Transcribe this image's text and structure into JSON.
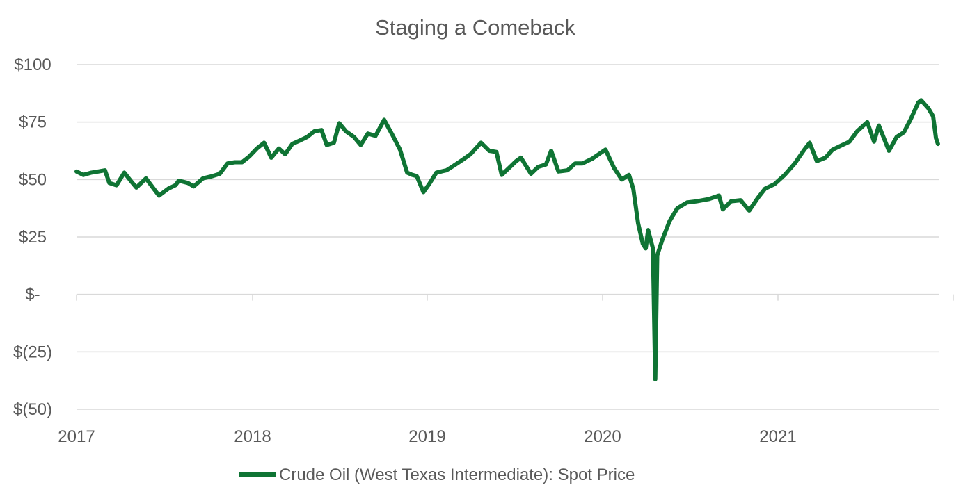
{
  "chart_data": {
    "type": "line",
    "title": "Staging a Comeback",
    "xlabel": "",
    "ylabel": "",
    "x_tick_labels": [
      "2017",
      "2018",
      "2019",
      "2020",
      "2021"
    ],
    "y_tick_labels": [
      "$100",
      "$75",
      "$50",
      "$25",
      "$-",
      "$(25)",
      "$(50)"
    ],
    "y_ticks": [
      100,
      75,
      50,
      25,
      0,
      -25,
      -50
    ],
    "ylim": [
      -50,
      100
    ],
    "xlim": [
      "2017-01-01",
      "2021-11-30"
    ],
    "grid": true,
    "legend_position": "bottom",
    "series": [
      {
        "name": "Crude Oil (West Texas Intermediate): Spot Price",
        "color": "#0f7434",
        "points": [
          [
            "2017-01-01",
            53.5
          ],
          [
            "2017-01-15",
            52.0
          ],
          [
            "2017-02-01",
            53.0
          ],
          [
            "2017-02-15",
            53.5
          ],
          [
            "2017-03-01",
            54.0
          ],
          [
            "2017-03-10",
            48.5
          ],
          [
            "2017-03-25",
            47.5
          ],
          [
            "2017-04-10",
            53.0
          ],
          [
            "2017-04-25",
            49.0
          ],
          [
            "2017-05-05",
            46.5
          ],
          [
            "2017-05-25",
            50.5
          ],
          [
            "2017-06-10",
            46.0
          ],
          [
            "2017-06-21",
            43.0
          ],
          [
            "2017-07-10",
            46.0
          ],
          [
            "2017-07-25",
            47.5
          ],
          [
            "2017-08-01",
            49.5
          ],
          [
            "2017-08-20",
            48.5
          ],
          [
            "2017-09-01",
            47.0
          ],
          [
            "2017-09-20",
            50.5
          ],
          [
            "2017-10-10",
            51.5
          ],
          [
            "2017-10-25",
            52.5
          ],
          [
            "2017-11-10",
            57.0
          ],
          [
            "2017-11-25",
            57.5
          ],
          [
            "2017-12-10",
            57.5
          ],
          [
            "2017-12-25",
            60.0
          ],
          [
            "2018-01-10",
            63.5
          ],
          [
            "2018-01-25",
            66.0
          ],
          [
            "2018-02-09",
            59.5
          ],
          [
            "2018-02-25",
            63.5
          ],
          [
            "2018-03-10",
            61.0
          ],
          [
            "2018-03-25",
            65.5
          ],
          [
            "2018-04-10",
            67.0
          ],
          [
            "2018-04-25",
            68.5
          ],
          [
            "2018-05-10",
            71.0
          ],
          [
            "2018-05-25",
            71.5
          ],
          [
            "2018-06-05",
            65.0
          ],
          [
            "2018-06-20",
            66.0
          ],
          [
            "2018-07-01",
            74.5
          ],
          [
            "2018-07-15",
            71.0
          ],
          [
            "2018-08-01",
            68.5
          ],
          [
            "2018-08-15",
            65.0
          ],
          [
            "2018-08-30",
            70.0
          ],
          [
            "2018-09-15",
            69.0
          ],
          [
            "2018-10-03",
            76.0
          ],
          [
            "2018-10-20",
            69.5
          ],
          [
            "2018-11-05",
            63.0
          ],
          [
            "2018-11-20",
            53.0
          ],
          [
            "2018-12-01",
            52.0
          ],
          [
            "2018-12-10",
            51.5
          ],
          [
            "2018-12-24",
            44.5
          ],
          [
            "2019-01-05",
            48.0
          ],
          [
            "2019-01-20",
            53.0
          ],
          [
            "2019-02-10",
            54.0
          ],
          [
            "2019-02-25",
            56.0
          ],
          [
            "2019-03-15",
            58.5
          ],
          [
            "2019-04-01",
            61.0
          ],
          [
            "2019-04-23",
            66.0
          ],
          [
            "2019-05-10",
            62.5
          ],
          [
            "2019-05-25",
            62.0
          ],
          [
            "2019-06-05",
            52.0
          ],
          [
            "2019-06-20",
            55.0
          ],
          [
            "2019-07-05",
            58.0
          ],
          [
            "2019-07-15",
            59.5
          ],
          [
            "2019-08-05",
            52.5
          ],
          [
            "2019-08-20",
            55.5
          ],
          [
            "2019-09-05",
            56.5
          ],
          [
            "2019-09-16",
            62.5
          ],
          [
            "2019-10-01",
            53.5
          ],
          [
            "2019-10-20",
            54.0
          ],
          [
            "2019-11-05",
            57.0
          ],
          [
            "2019-11-20",
            57.0
          ],
          [
            "2019-12-10",
            59.0
          ],
          [
            "2020-01-07",
            63.0
          ],
          [
            "2020-01-25",
            55.0
          ],
          [
            "2020-02-10",
            50.0
          ],
          [
            "2020-02-25",
            52.0
          ],
          [
            "2020-03-05",
            46.0
          ],
          [
            "2020-03-15",
            31.0
          ],
          [
            "2020-03-25",
            22.0
          ],
          [
            "2020-03-31",
            20.0
          ],
          [
            "2020-04-05",
            28.0
          ],
          [
            "2020-04-15",
            20.0
          ],
          [
            "2020-04-20",
            -37.0
          ],
          [
            "2020-04-24",
            17.0
          ],
          [
            "2020-05-05",
            24.0
          ],
          [
            "2020-05-20",
            32.0
          ],
          [
            "2020-06-05",
            37.5
          ],
          [
            "2020-06-25",
            40.0
          ],
          [
            "2020-07-15",
            40.5
          ],
          [
            "2020-08-10",
            41.5
          ],
          [
            "2020-08-31",
            43.0
          ],
          [
            "2020-09-08",
            37.0
          ],
          [
            "2020-09-25",
            40.5
          ],
          [
            "2020-10-15",
            41.0
          ],
          [
            "2020-11-02",
            36.5
          ],
          [
            "2020-11-20",
            42.0
          ],
          [
            "2020-12-05",
            46.0
          ],
          [
            "2020-12-25",
            48.0
          ],
          [
            "2021-01-15",
            52.0
          ],
          [
            "2021-02-05",
            57.0
          ],
          [
            "2021-02-25",
            63.0
          ],
          [
            "2021-03-08",
            66.0
          ],
          [
            "2021-03-23",
            58.0
          ],
          [
            "2021-04-10",
            59.5
          ],
          [
            "2021-04-25",
            63.0
          ],
          [
            "2021-05-15",
            65.0
          ],
          [
            "2021-05-30",
            66.5
          ],
          [
            "2021-06-15",
            71.0
          ],
          [
            "2021-07-06",
            75.0
          ],
          [
            "2021-07-20",
            66.5
          ],
          [
            "2021-07-30",
            73.5
          ],
          [
            "2021-08-20",
            62.5
          ],
          [
            "2021-09-05",
            68.5
          ],
          [
            "2021-09-20",
            70.5
          ],
          [
            "2021-10-05",
            76.5
          ],
          [
            "2021-10-20",
            83.5
          ],
          [
            "2021-10-26",
            84.5
          ],
          [
            "2021-11-10",
            81.0
          ],
          [
            "2021-11-20",
            77.5
          ],
          [
            "2021-11-26",
            68.0
          ],
          [
            "2021-11-30",
            65.5
          ]
        ]
      }
    ]
  }
}
